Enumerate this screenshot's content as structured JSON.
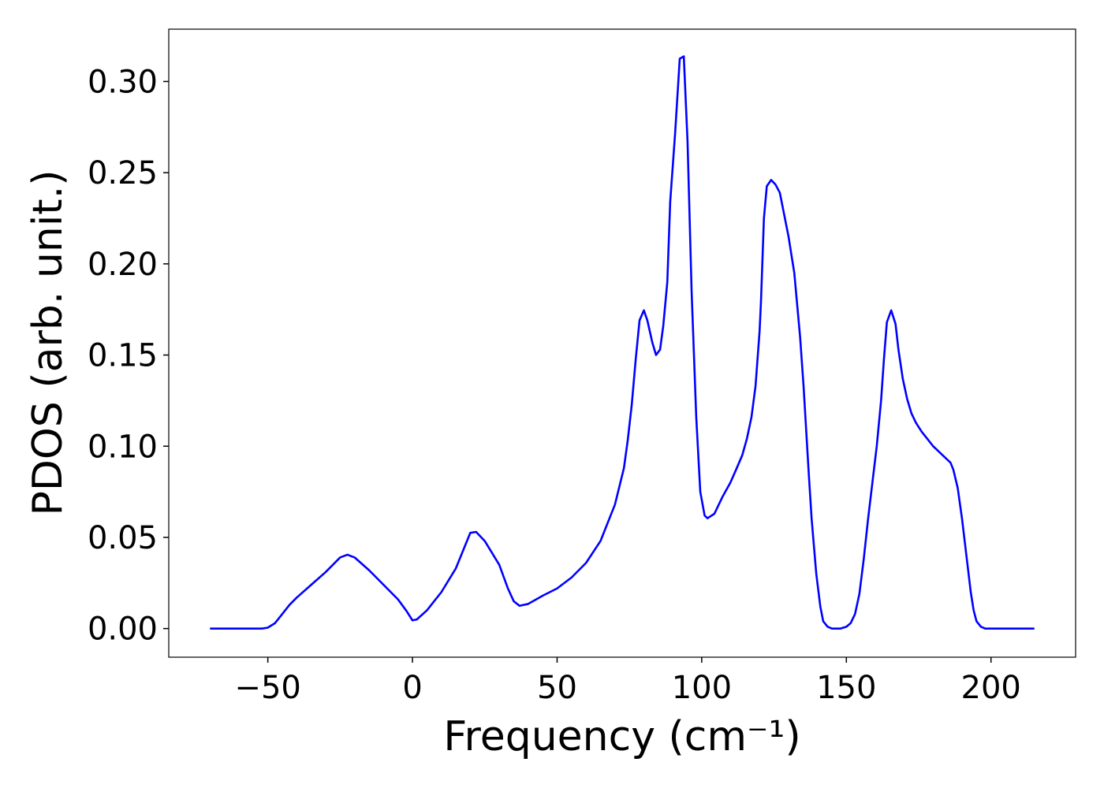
{
  "chart_data": {
    "type": "line",
    "x_label": "Frequency (cm⁻¹)",
    "y_label": "PDOS (arb. unit.)",
    "x": [
      -70,
      -60,
      -55,
      -52,
      -50,
      -47.5,
      -45,
      -42.5,
      -40,
      -35,
      -30,
      -25,
      -22.5,
      -20,
      -15,
      -10,
      -5,
      -2,
      0,
      1.5,
      5,
      10,
      15,
      20,
      22,
      25,
      30,
      33,
      35,
      37,
      40,
      45,
      50,
      55,
      60,
      65,
      70,
      73.1,
      74.4,
      75.8,
      77.2,
      78.5,
      80,
      81.2,
      82.9,
      84.2,
      85.6,
      86.7,
      88.1,
      89.1,
      90.8,
      92.4,
      93.8,
      95.1,
      96.5,
      98.1,
      99.5,
      101,
      102,
      104.4,
      107.1,
      109.9,
      112,
      114,
      115.6,
      117.2,
      118.6,
      120,
      120.5,
      121.5,
      122.5,
      124,
      125.5,
      127,
      128,
      130,
      132,
      134,
      135.2,
      137,
      138,
      139.6,
      141,
      142,
      143.5,
      145,
      148,
      150,
      151.5,
      153,
      154.5,
      156,
      157.5,
      159,
      160.5,
      162,
      163,
      164,
      165.5,
      167,
      168,
      169.5,
      171,
      172.5,
      174,
      176,
      178,
      180,
      182,
      184,
      186,
      187,
      188.5,
      190,
      191.5,
      193,
      194,
      195,
      196.5,
      198,
      205,
      215
    ],
    "series": [
      {
        "name": "PDOS",
        "color": "#0000ff",
        "values": [
          0,
          0,
          0,
          0,
          0.0005,
          0.003,
          0.008,
          0.013,
          0.017,
          0.024,
          0.031,
          0.039,
          0.0405,
          0.039,
          0.032,
          0.024,
          0.016,
          0.0095,
          0.0045,
          0.005,
          0.01,
          0.02,
          0.033,
          0.0525,
          0.053,
          0.048,
          0.035,
          0.022,
          0.015,
          0.0125,
          0.0135,
          0.018,
          0.022,
          0.028,
          0.036,
          0.048,
          0.068,
          0.088,
          0.103,
          0.1226,
          0.148,
          0.169,
          0.1745,
          0.169,
          0.157,
          0.15,
          0.153,
          0.166,
          0.19,
          0.234,
          0.2716,
          0.3125,
          0.3138,
          0.267,
          0.185,
          0.116,
          0.075,
          0.062,
          0.0605,
          0.063,
          0.072,
          0.08,
          0.0876,
          0.095,
          0.104,
          0.116,
          0.133,
          0.163,
          0.18,
          0.225,
          0.2426,
          0.246,
          0.2435,
          0.239,
          0.231,
          0.215,
          0.195,
          0.16,
          0.133,
          0.085,
          0.06,
          0.03,
          0.012,
          0.004,
          0.001,
          0,
          0,
          0.001,
          0.003,
          0.008,
          0.019,
          0.038,
          0.06,
          0.08,
          0.1,
          0.125,
          0.148,
          0.168,
          0.1745,
          0.167,
          0.153,
          0.137,
          0.126,
          0.118,
          0.113,
          0.108,
          0.104,
          0.1,
          0.097,
          0.094,
          0.091,
          0.087,
          0.077,
          0.06,
          0.04,
          0.02,
          0.01,
          0.004,
          0.001,
          0,
          0,
          0
        ]
      }
    ],
    "xlim": [
      -84.25,
      229.25
    ],
    "ylim": [
      -0.0157,
      0.3287
    ],
    "xticks": [
      {
        "value": -50,
        "label": "−50"
      },
      0,
      50,
      100,
      150,
      200
    ],
    "yticks": [
      {
        "value": 0,
        "label": "0.00"
      },
      {
        "value": 0.05,
        "label": "0.05"
      },
      {
        "value": 0.1,
        "label": "0.10"
      },
      {
        "value": 0.15,
        "label": "0.15"
      },
      {
        "value": 0.2,
        "label": "0.20"
      },
      {
        "value": 0.25,
        "label": "0.25"
      },
      {
        "value": 0.3,
        "label": "0.30"
      }
    ],
    "grid": false
  }
}
